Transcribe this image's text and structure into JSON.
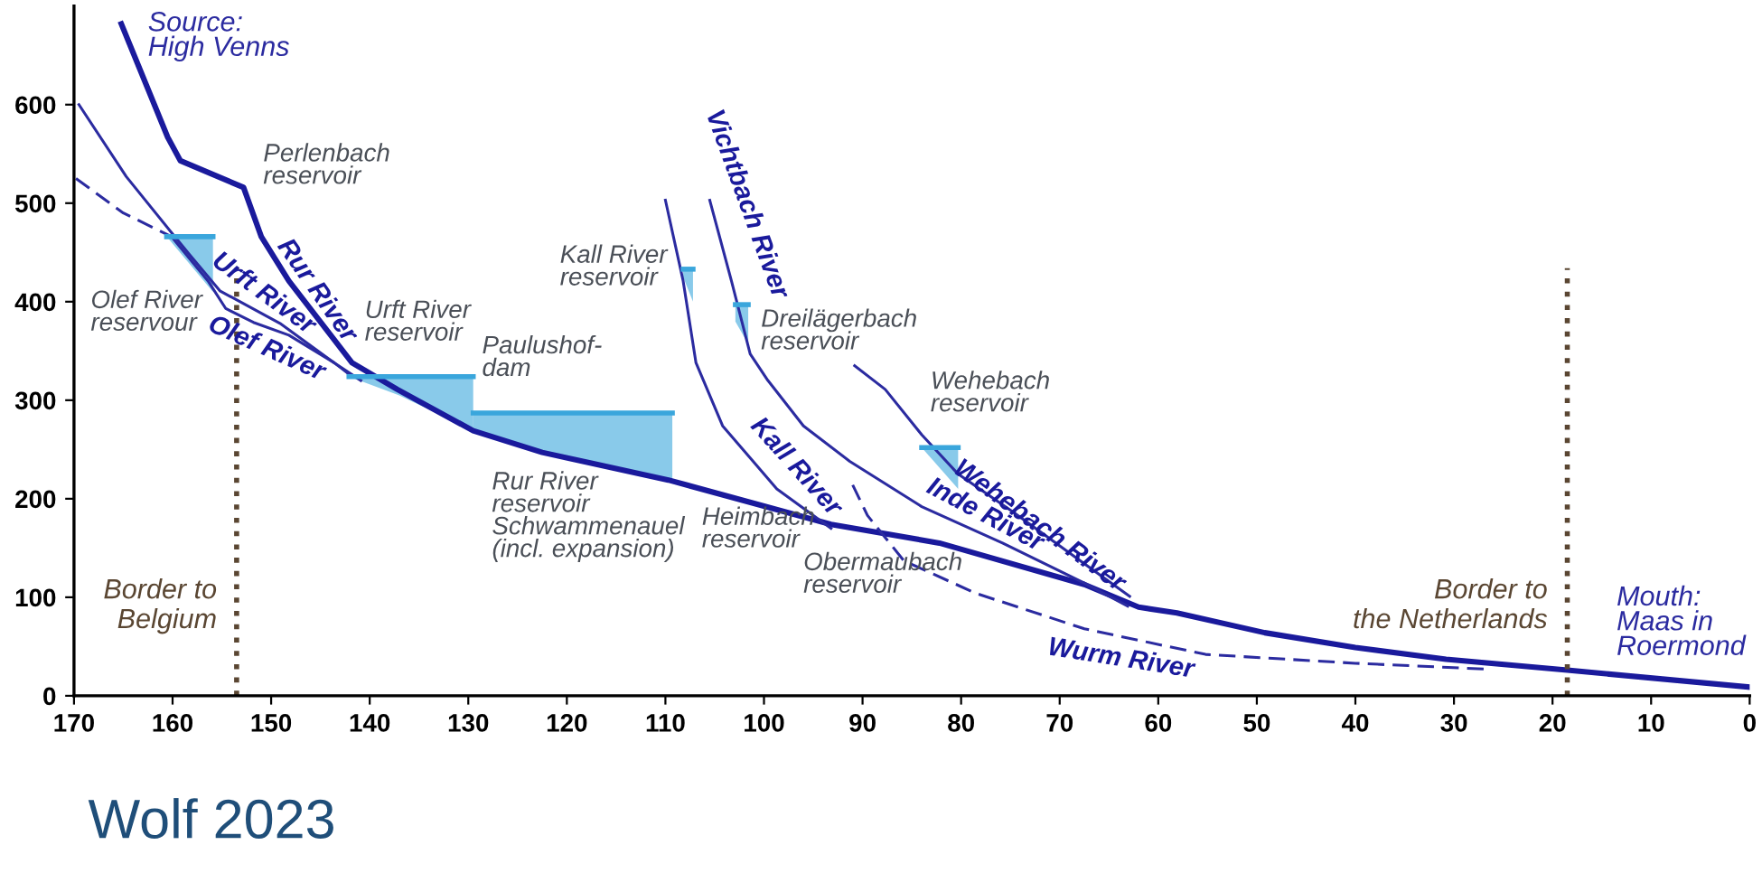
{
  "chart_data": {
    "type": "line",
    "xlim": [
      170,
      0
    ],
    "xticks": [
      170,
      160,
      150,
      140,
      130,
      120,
      110,
      100,
      90,
      80,
      70,
      60,
      50,
      40,
      30,
      20,
      10,
      0
    ],
    "ylim": [
      0,
      700
    ],
    "yticks": [
      0,
      100,
      200,
      300,
      400,
      500,
      600
    ],
    "series": [
      {
        "color": "#3aa6dc",
        "x": [
          160.6,
          155.9
        ],
        "values": [
          466,
          466
        ],
        "lower": [
          466,
          410
        ],
        "upper": [
          466,
          466
        ]
      },
      {
        "color": "#3aa6dc",
        "x": [
          142.1,
          137,
          129.5
        ],
        "values": [
          324,
          324,
          324
        ],
        "lower": [
          324,
          305,
          269
        ],
        "upper": [
          324,
          324,
          324
        ]
      },
      {
        "color": "#3aa6dc",
        "x": [
          129.5,
          125.1,
          109.3
        ],
        "values": [
          287,
          287,
          287
        ],
        "lower": [
          269,
          255,
          219
        ],
        "upper": [
          287,
          287,
          287
        ]
      },
      {
        "color": "#3aa6dc",
        "x": [
          108.2,
          107.2
        ],
        "values": [
          433,
          433
        ],
        "lower": [
          425,
          400
        ],
        "upper": [
          433,
          433
        ]
      },
      {
        "color": "#3aa6dc",
        "x": [
          102.9,
          101.6
        ],
        "values": [
          397,
          397
        ],
        "lower": [
          380,
          357
        ],
        "upper": [
          397,
          397
        ]
      },
      {
        "color": "#3aa6dc",
        "x": [
          84,
          80.3
        ],
        "values": [
          252,
          252
        ],
        "lower": [
          252,
          210
        ],
        "upper": [
          252,
          252
        ]
      },
      {
        "color": "#1a1a9c",
        "x": [
          165.2,
          160.5,
          159.2,
          152.8,
          151,
          148.2,
          141.8,
          137.2,
          129.5,
          122.5,
          109.7,
          93.2,
          82.2,
          67.5,
          62,
          58.1,
          49.2,
          40,
          30.8,
          18.5,
          0.2
        ],
        "values": [
          682,
          567,
          543,
          516,
          466,
          421,
          338,
          311,
          269,
          247,
          219,
          174,
          155,
          113,
          90,
          84,
          64,
          49,
          37,
          26,
          9
        ]
      },
      {
        "color": "#2b2ba0",
        "x": [
          169.5,
          164.7,
          160.1,
          158.3,
          155.2,
          149.1,
          143.6,
          140.9
        ],
        "values": [
          600,
          527,
          470,
          448,
          411,
          378,
          338,
          320
        ]
      },
      {
        "color": "#2b2ba0",
        "line_style": "dashed",
        "x": [
          169.8,
          165,
          160.1
        ],
        "values": [
          525,
          490,
          466
        ]
      },
      {
        "color": "#2b2ba0",
        "x": [
          160.1,
          156.4,
          154.6,
          151.8,
          148.2,
          143.6,
          141.8
        ],
        "values": [
          466,
          421,
          393,
          379,
          366,
          338,
          324
        ]
      },
      {
        "color": "#2b2ba0",
        "x": [
          110,
          108.2,
          106.9,
          104.2,
          98.7,
          93.2
        ],
        "values": [
          503,
          421,
          338,
          274,
          210,
          170
        ]
      },
      {
        "color": "#2b2ba0",
        "x": [
          105.5,
          103.3,
          101.4,
          99.6,
          96,
          91.3,
          84,
          75.8,
          67.6,
          63.1
        ],
        "values": [
          503,
          421,
          347,
          320,
          274,
          238,
          192,
          155,
          115,
          91
        ]
      },
      {
        "color": "#2b2ba0",
        "x": [
          90.8,
          87.7,
          84,
          80.3,
          74.8,
          67.5,
          62.9
        ],
        "values": [
          335,
          311,
          265,
          225,
          187,
          134,
          101
        ]
      },
      {
        "color": "#2b2ba0",
        "line_style": "dashed",
        "x": [
          91,
          89.5,
          85.8,
          78.5,
          67.5,
          55.2,
          40,
          26.6
        ],
        "values": [
          214,
          183,
          137,
          104,
          68,
          42,
          33,
          27
        ]
      }
    ],
    "ref_lines": [
      {
        "axis": "x",
        "value": 153.5,
        "label": "Border to\nBelgium",
        "color": "#5a4632",
        "line_style": "dotted"
      },
      {
        "axis": "x",
        "value": 18.5,
        "label": "Border to\nthe Netherlands",
        "color": "#5a4632",
        "line_style": "dotted"
      }
    ],
    "annotations": [
      "Source:\nHigh Venns",
      "Perlenbach\nreservoir",
      "Olef River\nreservour",
      "Rur River",
      "Urft River",
      "Olef River",
      "Urft River\nreservoir",
      "Paulushof-\ndam",
      "Rur River\nreservoir\nSchwammenauel\n(incl. expansion)",
      "Kall River\nreservoir",
      "Heimbach\nreservoir",
      "Dreilägerbach\nreservoir",
      "Vichtbach River",
      "Kall River",
      "Obermaubach\nreservoir",
      "Wehebach\nreservoir",
      "Inde River",
      "Wehebach River",
      "Wurm River",
      "Mouth:\nMaas in\nRoermond",
      "Wolf 2023"
    ]
  }
}
